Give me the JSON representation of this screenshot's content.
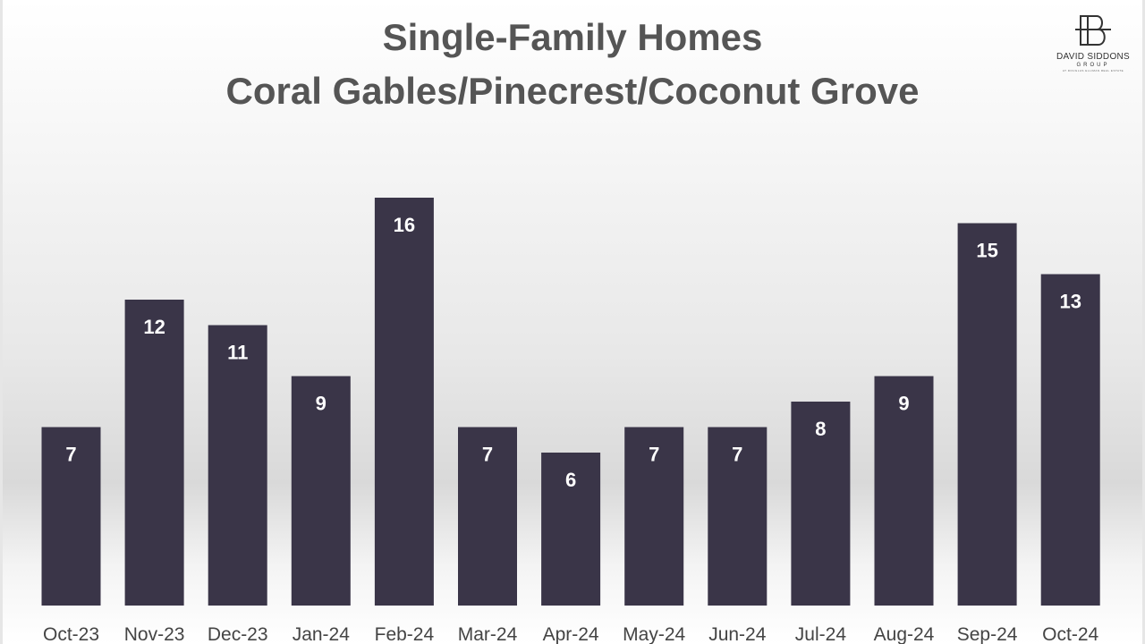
{
  "header": {
    "title_line1": "Single-Family Homes",
    "title_line2": "Coral Gables/Pinecrest/Coconut Grove"
  },
  "logo": {
    "name": "DAVID SIDDONS",
    "sub": "GROUP",
    "tagline": "AT DOUGLAS ELLIMAN REAL ESTATE"
  },
  "colors": {
    "bar": "#3a3548",
    "label": "#ffffff",
    "axis_text": "#444444",
    "title": "#555555"
  },
  "chart_data": {
    "type": "bar",
    "title": "Single-Family Homes Coral Gables/Pinecrest/Coconut Grove",
    "xlabel": "",
    "ylabel": "",
    "categories": [
      "Oct-23",
      "Nov-23",
      "Dec-23",
      "Jan-24",
      "Feb-24",
      "Mar-24",
      "Apr-24",
      "May-24",
      "Jun-24",
      "Jul-24",
      "Aug-24",
      "Sep-24",
      "Oct-24"
    ],
    "values": [
      7,
      12,
      11,
      9,
      16,
      7,
      6,
      7,
      7,
      8,
      9,
      15,
      13
    ],
    "ylim": [
      0,
      16
    ],
    "grid": false,
    "legend": "none",
    "data_labels": true
  }
}
